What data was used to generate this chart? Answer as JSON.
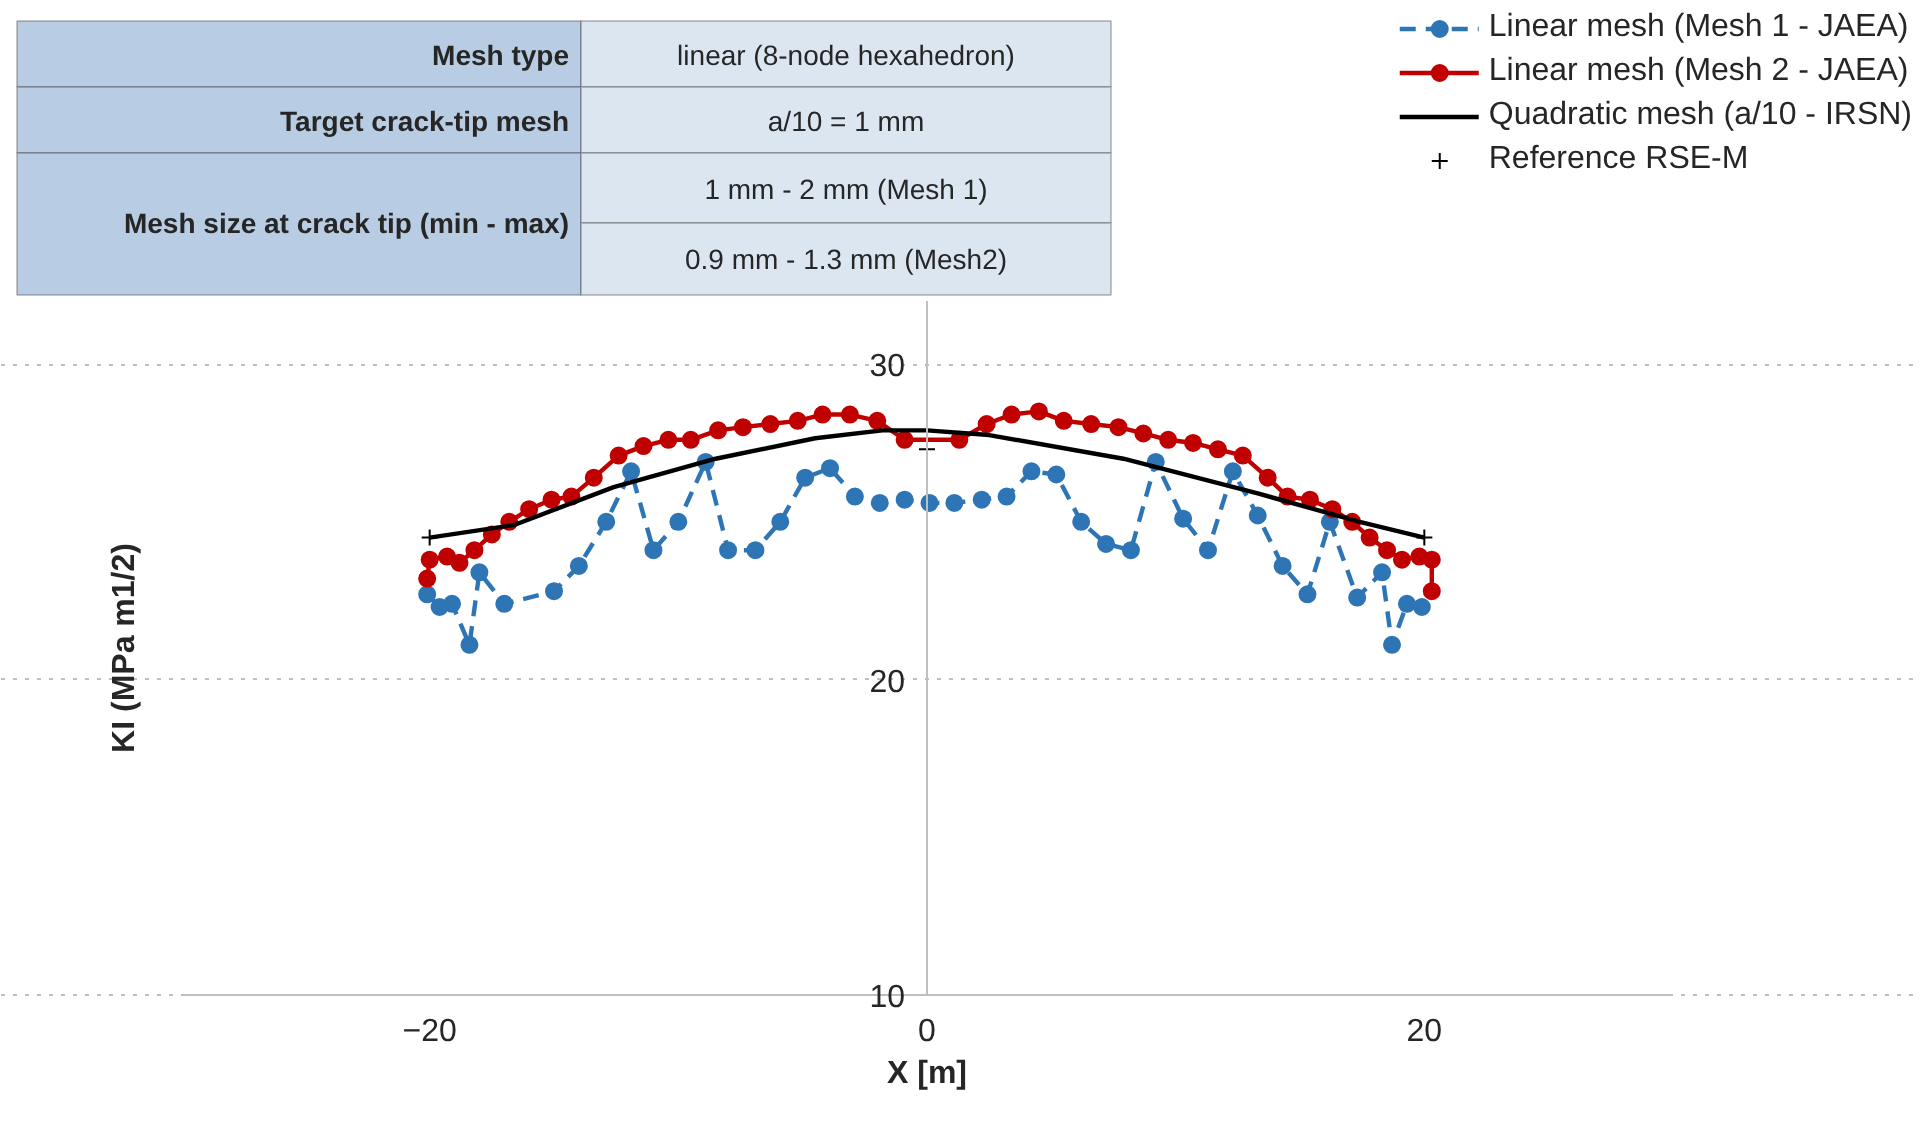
{
  "chart_data": {
    "type": "line",
    "xlabel": "X [m]",
    "ylabel": "KI (MPa m1/2)",
    "xlim": [
      -30,
      30
    ],
    "ylim": [
      10,
      32
    ],
    "xticks": [
      -20,
      0,
      20
    ],
    "yticks": [
      10,
      20,
      30
    ],
    "grid": "y",
    "legend": "top right",
    "annotations": [
      "Mesh type",
      "linear (8-node hexahedron)",
      "Target crack-tip mesh",
      "a/10 = 1 mm",
      "Mesh size at crack tip (min - max)",
      "1 mm - 2 mm (Mesh 1)",
      "0.9 mm - 1.3 mm (Mesh2)"
    ],
    "series": [
      {
        "name": "Linear mesh (Mesh 1 - JAEA)",
        "color": "#2e75b6",
        "marker": "circle",
        "line_style": "dashed",
        "x": [
          -20.1,
          -19.6,
          -19.1,
          -18.4,
          -18.0,
          -17.0,
          -15.0,
          -14.0,
          -12.9,
          -11.9,
          -11.0,
          -10.0,
          -8.9,
          -8.0,
          -6.9,
          -5.9,
          -4.9,
          -3.9,
          -2.9,
          -1.9,
          -0.9,
          0.1,
          1.1,
          2.2,
          3.2,
          4.2,
          5.2,
          6.2,
          7.2,
          8.2,
          9.2,
          10.3,
          11.3,
          12.3,
          13.3,
          14.3,
          15.3,
          16.2,
          17.3,
          18.3,
          18.7,
          19.3,
          19.9
        ],
        "values": [
          22.7,
          22.3,
          22.4,
          21.1,
          23.4,
          22.4,
          22.8,
          23.6,
          25.0,
          26.6,
          24.1,
          25.0,
          26.9,
          24.1,
          24.1,
          25.0,
          26.4,
          26.7,
          25.8,
          25.6,
          25.7,
          25.6,
          25.6,
          25.7,
          25.8,
          26.6,
          26.5,
          25.0,
          24.3,
          24.1,
          26.9,
          25.1,
          24.1,
          26.6,
          25.2,
          23.6,
          22.7,
          25.0,
          22.6,
          23.4,
          21.1,
          22.4,
          22.3
        ]
      },
      {
        "name": "Linear mesh (Mesh 2 - JAEA)",
        "color": "#c00000",
        "marker": "circle",
        "line_style": "solid",
        "x": [
          -20.1,
          -20.0,
          -19.3,
          -18.8,
          -18.2,
          -17.5,
          -16.8,
          -16.0,
          -15.1,
          -14.3,
          -13.4,
          -12.4,
          -11.4,
          -10.4,
          -9.5,
          -8.4,
          -7.4,
          -6.3,
          -5.2,
          -4.2,
          -3.1,
          -2.0,
          -0.9,
          1.3,
          2.4,
          3.4,
          4.5,
          5.5,
          6.6,
          7.7,
          8.7,
          9.7,
          10.7,
          11.7,
          12.7,
          13.7,
          14.5,
          15.4,
          16.3,
          17.1,
          17.8,
          18.5,
          19.1,
          19.8,
          20.3,
          20.3
        ],
        "values": [
          23.2,
          23.8,
          23.9,
          23.7,
          24.1,
          24.6,
          25.0,
          25.4,
          25.7,
          25.8,
          26.4,
          27.1,
          27.4,
          27.6,
          27.6,
          27.9,
          28.0,
          28.1,
          28.2,
          28.4,
          28.4,
          28.2,
          27.6,
          27.6,
          28.1,
          28.4,
          28.5,
          28.2,
          28.1,
          28.0,
          27.8,
          27.6,
          27.5,
          27.3,
          27.1,
          26.4,
          25.8,
          25.7,
          25.4,
          25.0,
          24.5,
          24.1,
          23.8,
          23.9,
          23.8,
          22.8
        ]
      },
      {
        "name": "Quadratic mesh (a/10 - IRSN)",
        "color": "#000000",
        "marker": "none",
        "line_style": "solid",
        "x": [
          -20,
          -16.6,
          -12.6,
          -8.5,
          -4.5,
          -1.8,
          0,
          2.5,
          7.9,
          13.3,
          17.4,
          20
        ],
        "values": [
          24.5,
          24.9,
          26.1,
          27.0,
          27.65,
          27.9,
          27.9,
          27.75,
          27.0,
          25.9,
          25.0,
          24.5
        ]
      },
      {
        "name": "Reference RSE-M",
        "type": "scatter",
        "color": "#000000",
        "marker": "cross",
        "x": [
          -20,
          0,
          20
        ],
        "values": [
          24.5,
          27.3,
          24.5
        ]
      }
    ]
  }
}
